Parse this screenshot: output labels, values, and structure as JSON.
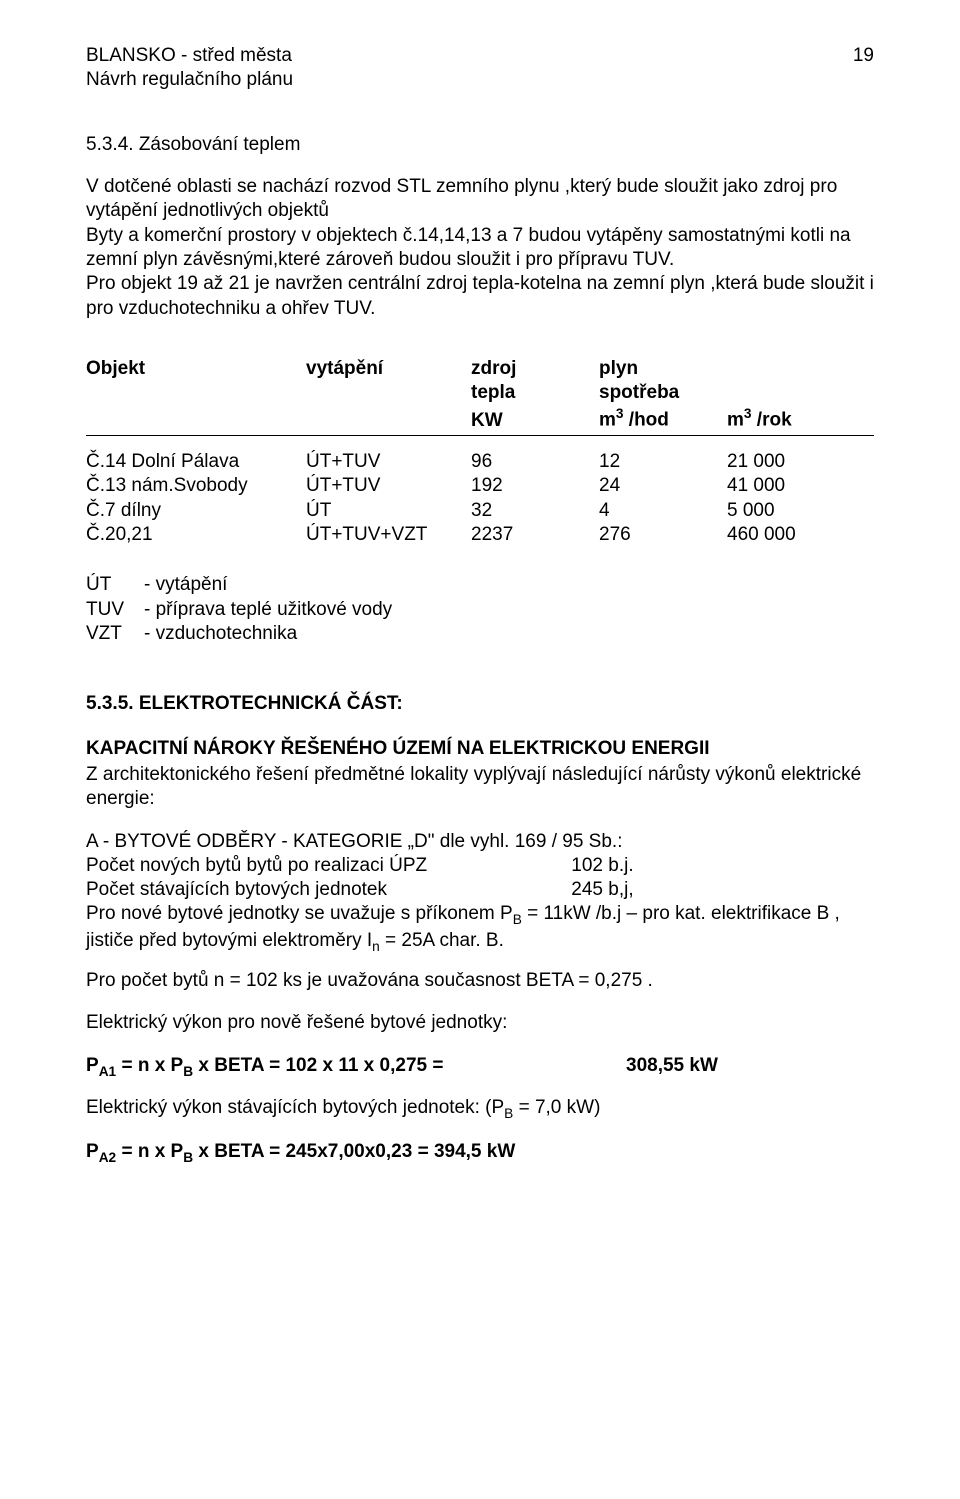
{
  "header": {
    "title_line1": "BLANSKO - střed města",
    "title_line2": "Návrh regulačního plánu",
    "page_number": "19"
  },
  "section534": {
    "number": "5.3.4. Zásobování teplem",
    "paragraph": "V dotčené oblasti se nachází rozvod STL zemního plynu ,který bude sloužit jako zdroj pro vytápění jednotlivých objektů\nByty a komerční prostory v objektech č.14,14,13 a 7 budou vytápěny samostatnými kotli na zemní plyn závěsnými,které zároveň budou sloužit i pro přípravu TUV.\nPro objekt 19 až 21 je navržen centrální zdroj tepla-kotelna na zemní plyn ,která bude sloužit i pro vzduchotechniku a ohřev TUV."
  },
  "table": {
    "header": {
      "c1": "Objekt",
      "c2": "vytápění",
      "c3_top": "zdroj",
      "c3_sub": "tepla",
      "c3_unit": "KW",
      "c4_top": "plyn",
      "c4_sub": "spotřeba",
      "c4_unit_html": "m<sup>3</sup> /hod",
      "c5_unit_html": "m<sup>3</sup> /rok"
    },
    "rows": [
      {
        "c1": "Č.14 Dolní Pálava",
        "c2": "ÚT+TUV",
        "c3": "96",
        "c4": "12",
        "c5": "21 000"
      },
      {
        "c1": "Č.13 nám.Svobody",
        "c2": "ÚT+TUV",
        "c3": "192",
        "c4": "24",
        "c5": "41 000"
      },
      {
        "c1": "Č.7 dílny",
        "c2": "ÚT",
        "c3": "32",
        "c4": "4",
        "c5": "5 000"
      },
      {
        "c1": "Č.20,21",
        "c2": "ÚT+TUV+VZT",
        "c3": "2237",
        "c4": "276",
        "c5": "460 000"
      }
    ]
  },
  "legend": [
    {
      "abbr": "ÚT",
      "desc": "- vytápění"
    },
    {
      "abbr": "TUV",
      "desc": "- příprava teplé užitkové vody"
    },
    {
      "abbr": "VZT",
      "desc": "- vzduchotechnika"
    }
  ],
  "section535": {
    "heading": "5.3.5. ELEKTROTECHNICKÁ ČÁST:",
    "cap_title": "KAPACITNÍ NÁROKY ŘEŠENÉHO ÚZEMÍ NA ELEKTRICKOU ENERGII",
    "cap_para": "Z architektonického řešení předmětné lokality vyplývají následující nárůsty výkonů elektrické energie:",
    "a_line": "A - BYTOVÉ ODBĚRY  - KATEGORIE „D\" dle vyhl. 169 / 95 Sb.:",
    "a_row1_label": "Počet  nových bytů bytů po realizaci ÚPZ",
    "a_row1_val": "102 b.j.",
    "a_row2_label": "Počet stávajících bytových jednotek",
    "a_row2_val": "245 b,j,",
    "a_para_html": "Pro nové  bytové jednotky se uvažuje s příkonem P<sub>B</sub> = 11kW /b.j – pro kat. elektrifikace B , jističe před bytovými elektroměry I<sub>n</sub> = 25A char. B.",
    "a_count_line": "Pro počet bytů  n = 102 ks je uvažována současnost BETA = 0,275 .",
    "ev_new_label": "Elektrický výkon pro nově řešené bytové jednotky:",
    "eq1_left_html": "P<sub>A1</sub> = n  x  P<sub>B</sub> x BETA  =  102 x 11 x 0,275  =",
    "eq1_right": "308,55 kW",
    "ev_exist_label_html": "Elektrický výkon stávajících bytových jednotek: (P<sub>B</sub> = 7,0 kW)",
    "eq2_html": "P<sub>A2</sub> = n  x  P<sub>B</sub> x BETA  =  245x7,00x0,23 = 394,5 kW"
  }
}
